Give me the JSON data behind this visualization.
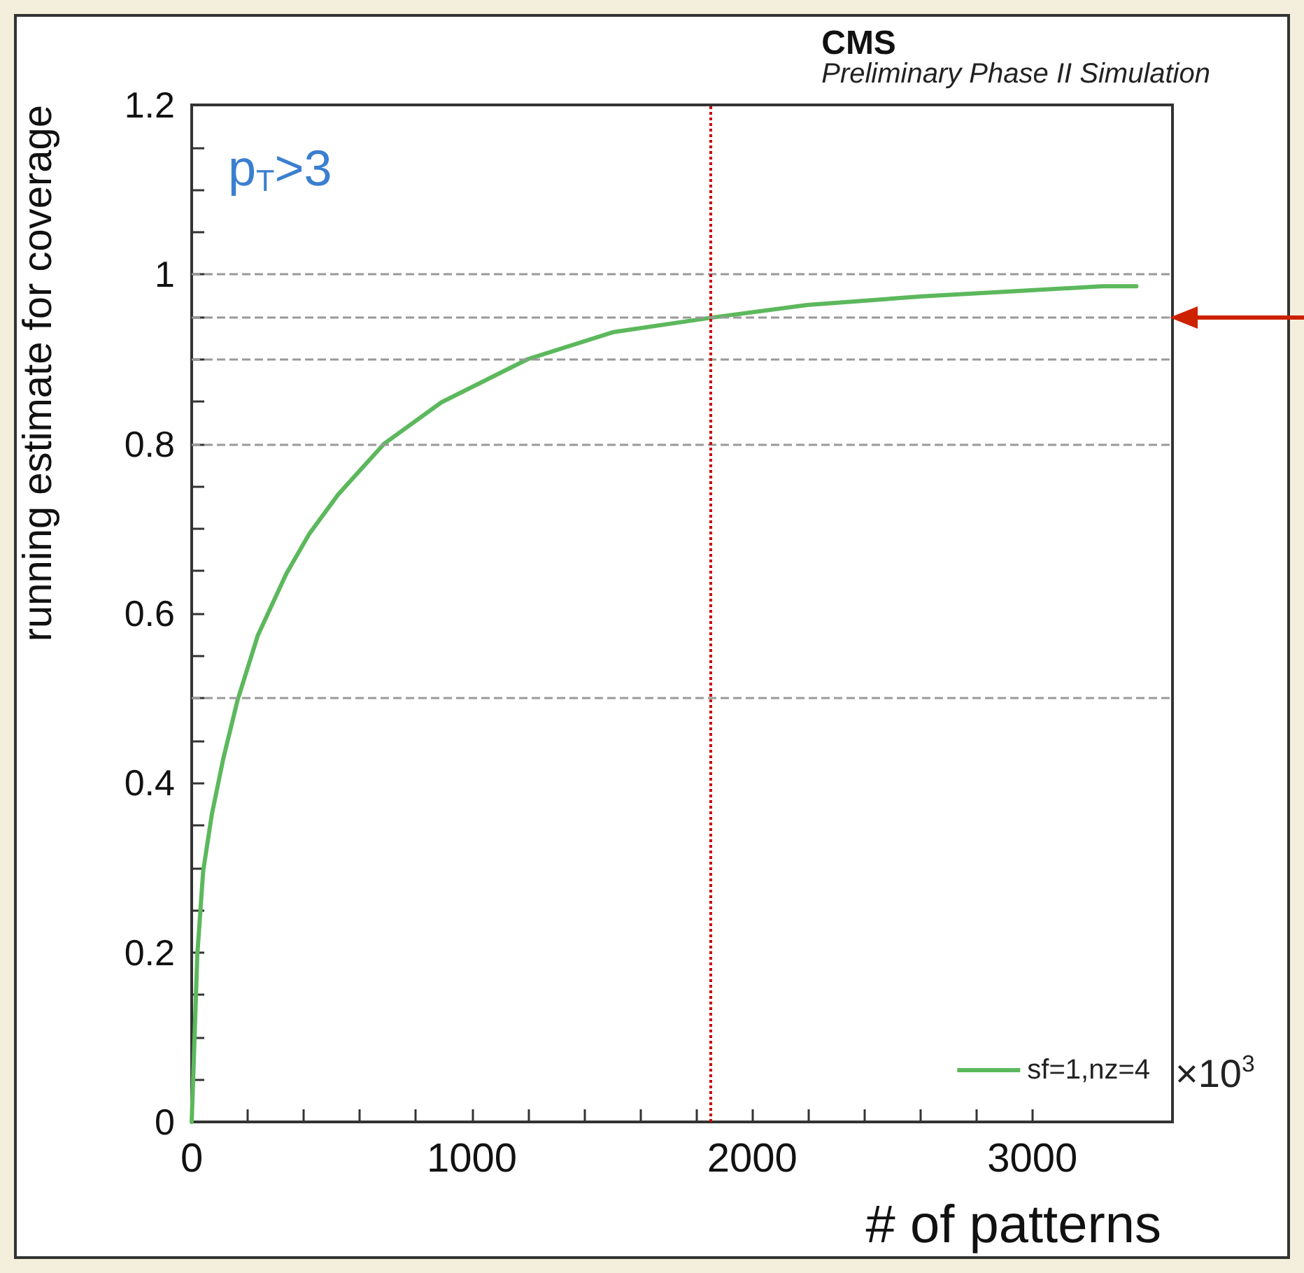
{
  "chart_data": {
    "type": "line",
    "title": "CMS",
    "subtitle": "Preliminary Phase II Simulation",
    "xlabel": "# of patterns",
    "ylabel": "running estimate for coverage",
    "annotations": [
      "p$_{T}$>3",
      "×10$^{3}$"
    ],
    "series": [
      {
        "name": "sf=1,nz=4",
        "color": "#5cb85c",
        "x": [
          0,
          6,
          20,
          41,
          72,
          113,
          164,
          236,
          338,
          420,
          522,
          686,
          891,
          1199,
          1506,
          1855,
          2197,
          2605,
          2929,
          3250,
          3371
        ],
        "values": [
          0,
          0.058,
          0.197,
          0.296,
          0.363,
          0.429,
          0.498,
          0.574,
          0.647,
          0.694,
          0.74,
          0.8,
          0.849,
          0.9,
          0.932,
          0.949,
          0.964,
          0.974,
          0.98,
          0.986,
          0.986
        ]
      }
    ],
    "xlim": [
      0,
      3500
    ],
    "xticks": [
      0,
      1000,
      2000,
      3000
    ],
    "ylim": [
      0,
      1.2
    ],
    "yticks": [
      0,
      0.2,
      0.4,
      0.6,
      0.8,
      1,
      1.2
    ],
    "ref_lines": [
      {
        "axis": "y",
        "value": 0.5,
        "color": "#999999",
        "line_style": "dashed"
      },
      {
        "axis": "y",
        "value": 0.8,
        "color": "#999999",
        "line_style": "dashed"
      },
      {
        "axis": "y",
        "value": 0.9,
        "color": "#999999",
        "line_style": "dashed"
      },
      {
        "axis": "y",
        "value": 0.95,
        "color": "#999999",
        "line_style": "dashed"
      },
      {
        "axis": "y",
        "value": 1,
        "color": "#999999",
        "line_style": "dashed"
      },
      {
        "axis": "x",
        "value": 1850,
        "color": "#cc0000",
        "line_style": "dotted"
      }
    ],
    "legend": "bottom right",
    "grid": false,
    "marker": "none",
    "line_style": "solid"
  }
}
